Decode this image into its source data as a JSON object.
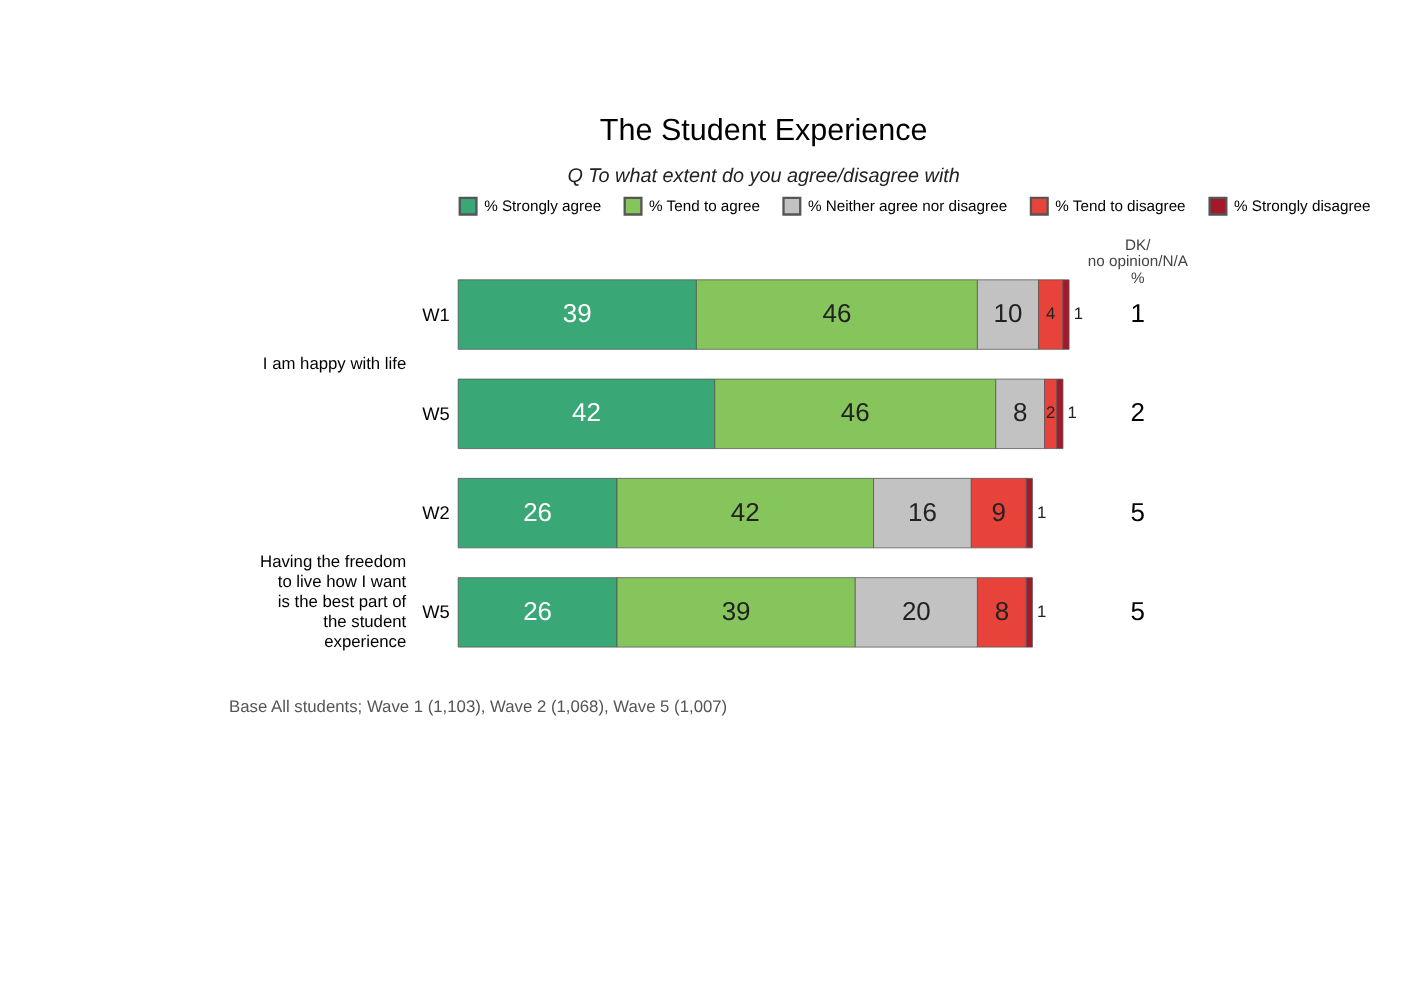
{
  "chart_data": {
    "type": "bar",
    "orientation": "horizontal",
    "stacked": true,
    "data_labels": true,
    "legend": "top",
    "grid": false,
    "title": "The Student Experience",
    "subtitle": "Q   To what extent do you agree/disagree with",
    "categories": [
      "W1",
      "W5",
      "W2",
      "W5"
    ],
    "series": [
      {
        "name": "% Strongly agree",
        "color": "#3aa776",
        "values": [
          39,
          42,
          26,
          26
        ]
      },
      {
        "name": "% Tend to agree",
        "color": "#86c45c",
        "values": [
          46,
          46,
          42,
          39
        ]
      },
      {
        "name": "% Neither agree nor disagree",
        "color": "#c2c2c2",
        "values": [
          10,
          8,
          16,
          20
        ]
      },
      {
        "name": "% Tend to disagree",
        "color": "#e8433b",
        "values": [
          4,
          2,
          9,
          8
        ]
      },
      {
        "name": "% Strongly disagree",
        "color": "#a3192b",
        "values": [
          1,
          1,
          1,
          1
        ]
      }
    ],
    "annotations": [
      "I am happy with life",
      "Having the freedom to live how I want is the best part of the student experience",
      "DK/no opinion/N/A %",
      "1",
      "2",
      "5",
      "5",
      "Base    All students; Wave 1 (1,103), Wave 2 (1,068), Wave 5 (1,007)"
    ]
  }
}
